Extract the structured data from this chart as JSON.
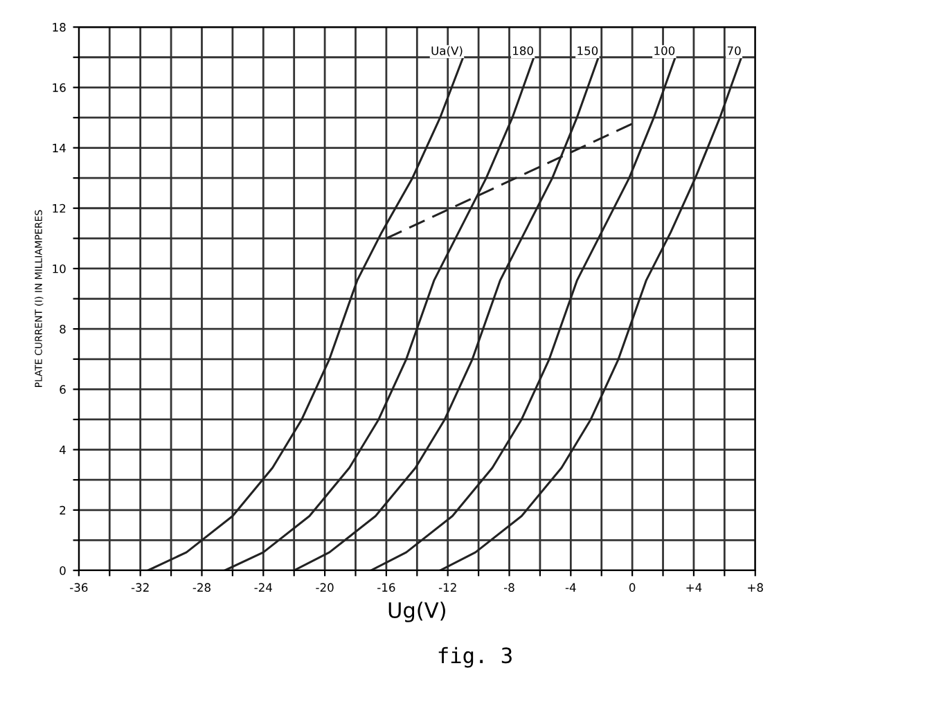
{
  "chart_data": {
    "type": "line",
    "xlabel": "Ug(V)",
    "ylabel": "PLATE CURRENT (I) IN MILLIAMPERES",
    "xlim": [
      -36,
      8
    ],
    "ylim": [
      0,
      18
    ],
    "xticks": [
      {
        "value": -36,
        "label": "-36"
      },
      {
        "value": -34,
        "label": null
      },
      {
        "value": -32,
        "label": "-32"
      },
      {
        "value": -30,
        "label": null
      },
      {
        "value": -28,
        "label": "-28"
      },
      {
        "value": -26,
        "label": null
      },
      {
        "value": -24,
        "label": "-24"
      },
      {
        "value": -22,
        "label": null
      },
      {
        "value": -20,
        "label": "-20"
      },
      {
        "value": -18,
        "label": null
      },
      {
        "value": -16,
        "label": "-16"
      },
      {
        "value": -14,
        "label": null
      },
      {
        "value": -12,
        "label": "-12"
      },
      {
        "value": -10,
        "label": null
      },
      {
        "value": -8,
        "label": "-8"
      },
      {
        "value": -6,
        "label": null
      },
      {
        "value": -4,
        "label": "-4"
      },
      {
        "value": -2,
        "label": null
      },
      0,
      {
        "value": 2,
        "label": null
      },
      {
        "value": 4,
        "label": "+4"
      },
      {
        "value": 6,
        "label": null
      },
      {
        "value": 8,
        "label": "+8"
      }
    ],
    "yticks": [
      0,
      {
        "value": 1,
        "label": null
      },
      2,
      {
        "value": 3,
        "label": null
      },
      4,
      {
        "value": 5,
        "label": null
      },
      6,
      {
        "value": 7,
        "label": null
      },
      8,
      {
        "value": 9,
        "label": null
      },
      10,
      {
        "value": 11,
        "label": null
      },
      12,
      {
        "value": 13,
        "label": null
      },
      14,
      {
        "value": 15,
        "label": null
      },
      16,
      {
        "value": 17,
        "label": null
      },
      18
    ],
    "grid": true,
    "marker": "none",
    "line_style": "solid",
    "series": [
      {
        "name": "Ua(V)",
        "color": "#222222",
        "x": [
          -31.5,
          -29,
          -26,
          -23.4,
          -21.5,
          -19.7,
          -17.9,
          -16.3,
          -14.3,
          -12.5,
          -11
        ],
        "values": [
          0,
          0.6,
          1.8,
          3.4,
          5,
          7,
          9.6,
          11.2,
          13,
          15,
          17
        ]
      },
      {
        "name": "180",
        "color": "#222222",
        "x": [
          -26.5,
          -24,
          -21,
          -18.4,
          -16.5,
          -14.7,
          -12.9,
          -11.3,
          -9.5,
          -7.8,
          -6.4
        ],
        "values": [
          0,
          0.6,
          1.8,
          3.4,
          5,
          7,
          9.6,
          11.2,
          13,
          15,
          17
        ]
      },
      {
        "name": "150",
        "color": "#222222",
        "x": [
          -22,
          -19.7,
          -16.7,
          -14.1,
          -12.2,
          -10.4,
          -8.6,
          -7,
          -5.2,
          -3.6,
          -2.2
        ],
        "values": [
          0,
          0.6,
          1.8,
          3.4,
          5,
          7,
          9.6,
          11.2,
          13,
          15,
          17
        ]
      },
      {
        "name": "100",
        "color": "#222222",
        "x": [
          -17,
          -14.7,
          -11.7,
          -9.1,
          -7.2,
          -5.4,
          -3.6,
          -2,
          -0.2,
          1.4,
          2.8
        ],
        "values": [
          0,
          0.6,
          1.8,
          3.4,
          5,
          7,
          9.6,
          11.2,
          13,
          15,
          17
        ]
      },
      {
        "name": "70",
        "color": "#222222",
        "x": [
          -12.5,
          -10.2,
          -7.2,
          -4.6,
          -2.7,
          -0.9,
          0.9,
          2.5,
          4.1,
          5.7,
          7.1
        ],
        "values": [
          0,
          0.6,
          1.8,
          3.4,
          5,
          7,
          9.6,
          11.2,
          13,
          15,
          17
        ]
      },
      {
        "color": "#222222",
        "line_style": "dashed",
        "x": [
          -16,
          0
        ],
        "values": [
          11,
          14.8
        ]
      }
    ],
    "annotations": [
      "fig. 3"
    ]
  }
}
